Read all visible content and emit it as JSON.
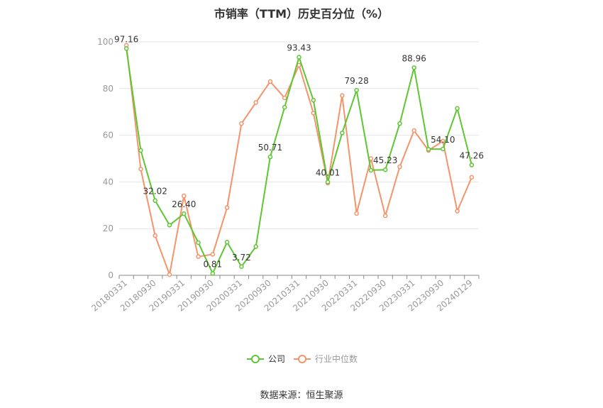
{
  "chart_data": {
    "type": "line",
    "title": "市销率（TTM）历史百分位（%）",
    "source": "数据来源：恒生聚源",
    "ylim": [
      0,
      100
    ],
    "yticks": [
      "0",
      "20",
      "40",
      "60",
      "80",
      "100"
    ],
    "xtick_labels": [
      "20180331",
      "20180930",
      "20190331",
      "20190930",
      "20200331",
      "20200930",
      "20210331",
      "20210930",
      "20220331",
      "20220930",
      "20230331",
      "20230930",
      "20240129"
    ],
    "grid": true,
    "legend_position": "bottom",
    "colors": {
      "company": "#5ec632",
      "industry": "#f5936a"
    },
    "series": [
      {
        "name": "公司",
        "values": [
          97.16,
          53.5,
          32.02,
          21.5,
          26.4,
          14.0,
          0.81,
          14.2,
          3.72,
          12.3,
          50.71,
          72.0,
          93.43,
          75.0,
          40.01,
          61.0,
          79.28,
          45.0,
          45.23,
          65.0,
          88.96,
          54.0,
          54.1,
          71.5,
          47.26
        ]
      },
      {
        "name": "行业中位数",
        "values": [
          98.5,
          45.5,
          17.0,
          0.3,
          34.0,
          8.0,
          9.0,
          29.0,
          65.0,
          74.0,
          83.0,
          76.0,
          90.0,
          69.5,
          39.5,
          77.0,
          26.5,
          50.0,
          25.5,
          46.5,
          62.0,
          53.5,
          57.5,
          27.5,
          42.0
        ]
      }
    ],
    "data_labels": [
      {
        "index": 0,
        "text": "97.16"
      },
      {
        "index": 2,
        "text": "32.02"
      },
      {
        "index": 4,
        "text": "26.40"
      },
      {
        "index": 6,
        "text": "0.81"
      },
      {
        "index": 8,
        "text": "3.72"
      },
      {
        "index": 10,
        "text": "50.71"
      },
      {
        "index": 12,
        "text": "93.43"
      },
      {
        "index": 14,
        "text": "40.01"
      },
      {
        "index": 16,
        "text": "79.28"
      },
      {
        "index": 18,
        "text": "45.23"
      },
      {
        "index": 20,
        "text": "88.96"
      },
      {
        "index": 22,
        "text": "54.10"
      },
      {
        "index": 24,
        "text": "47.26"
      }
    ]
  }
}
